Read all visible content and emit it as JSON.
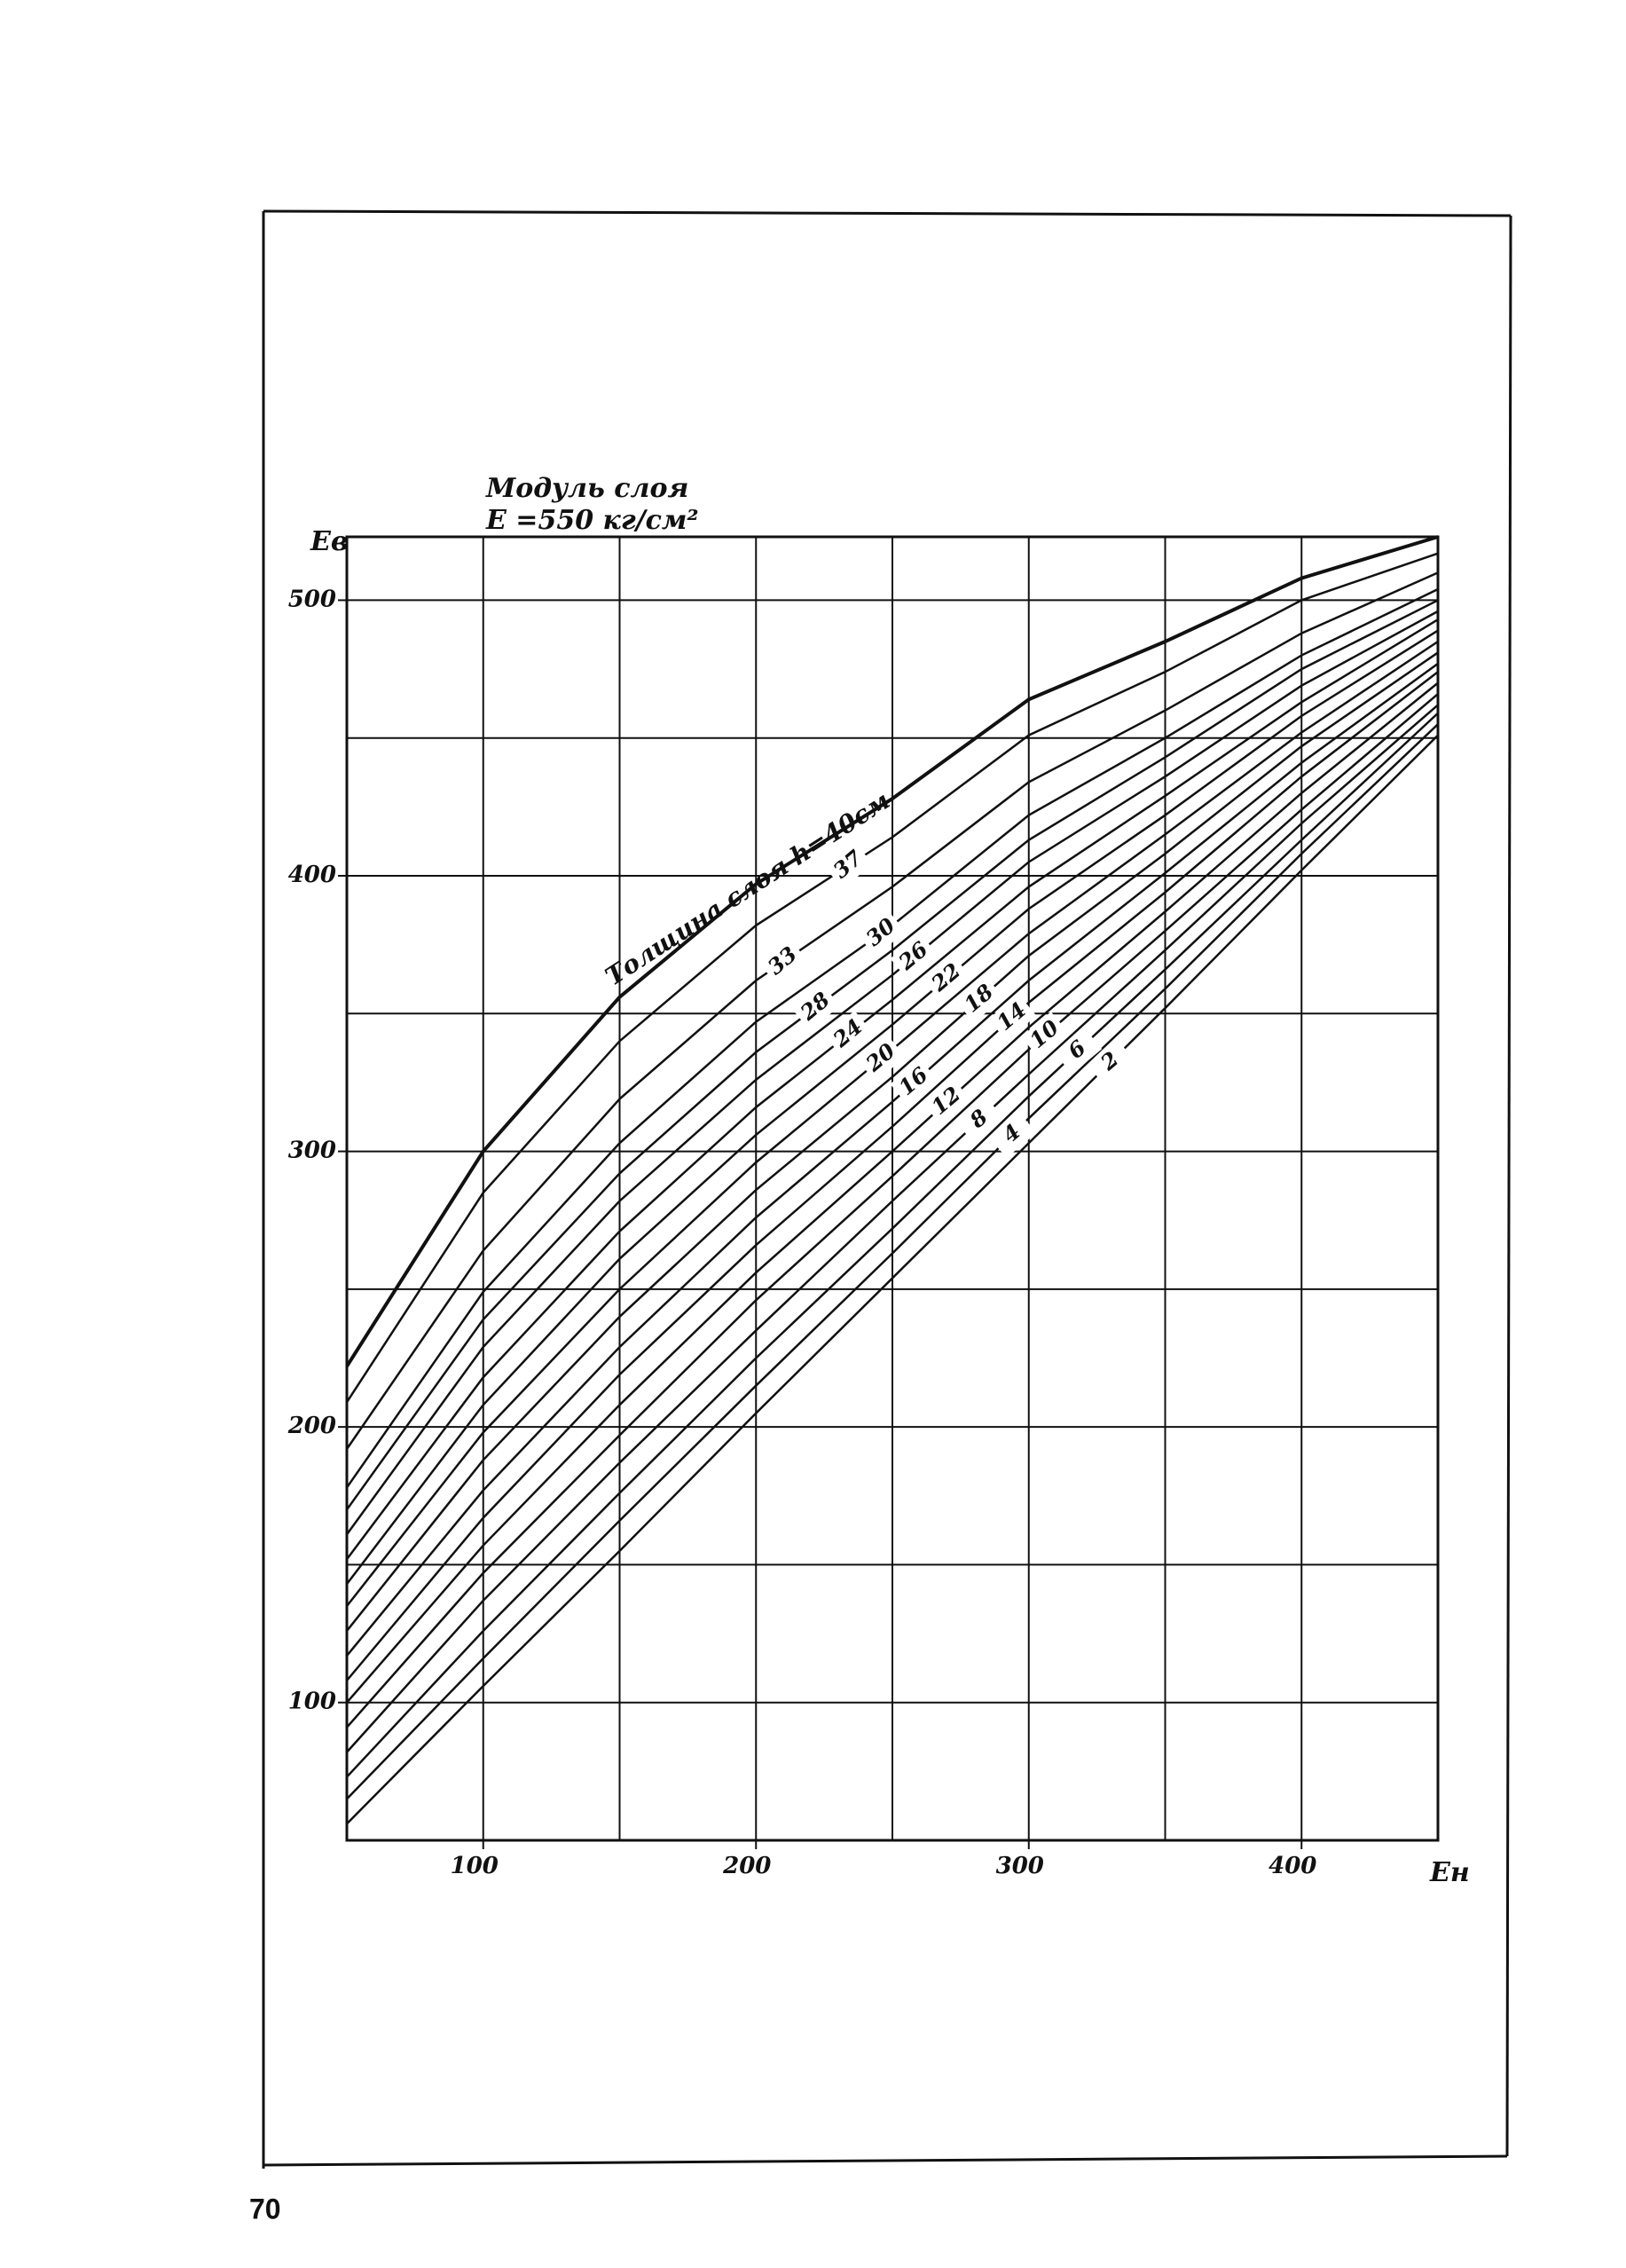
{
  "page_number": "70",
  "chart_data": {
    "type": "line",
    "title": "Модуль слоя",
    "subtitle": "Е =550 кг/см²",
    "y_label": "Eв",
    "x_label": "Eн",
    "xlim": [
      50,
      450
    ],
    "ylim": [
      50,
      523
    ],
    "xticks": [
      100,
      200,
      300,
      400
    ],
    "yticks": [
      100,
      200,
      300,
      400,
      500
    ],
    "xgrid": [
      50,
      100,
      150,
      200,
      250,
      300,
      350,
      400,
      450
    ],
    "ygrid": [
      50,
      100,
      150,
      200,
      250,
      300,
      350,
      400,
      450,
      500
    ],
    "grid": true,
    "x": [
      50,
      100,
      150,
      200,
      250,
      300,
      350,
      400,
      450
    ],
    "series": [
      {
        "name": "2",
        "color": "#111111",
        "values": [
          56,
          106,
          155,
          205,
          254,
          303,
          352,
          402,
          451
        ]
      },
      {
        "name": "4",
        "color": "#111111",
        "values": [
          65,
          116,
          166,
          215,
          263,
          312,
          359,
          408,
          455
        ]
      },
      {
        "name": "6",
        "color": "#111111",
        "values": [
          73,
          126,
          176,
          225,
          272,
          320,
          366,
          413,
          459
        ]
      },
      {
        "name": "8",
        "color": "#111111",
        "values": [
          82,
          137,
          187,
          235,
          282,
          328,
          373,
          419,
          462
        ]
      },
      {
        "name": "10",
        "color": "#111111",
        "values": [
          91,
          147,
          197,
          246,
          291,
          337,
          380,
          424,
          466
        ]
      },
      {
        "name": "12",
        "color": "#111111",
        "values": [
          100,
          157,
          208,
          256,
          300,
          345,
          387,
          430,
          470
        ]
      },
      {
        "name": "14",
        "color": "#111111",
        "values": [
          108,
          167,
          219,
          266,
          309,
          354,
          394,
          436,
          474
        ]
      },
      {
        "name": "16",
        "color": "#111111",
        "values": [
          117,
          177,
          229,
          276,
          318,
          362,
          401,
          441,
          477
        ]
      },
      {
        "name": "18",
        "color": "#111111",
        "values": [
          126,
          188,
          240,
          286,
          327,
          371,
          408,
          447,
          481
        ]
      },
      {
        "name": "20",
        "color": "#111111",
        "values": [
          135,
          198,
          250,
          296,
          337,
          379,
          415,
          452,
          485
        ]
      },
      {
        "name": "22",
        "color": "#111111",
        "values": [
          143,
          208,
          261,
          306,
          346,
          388,
          422,
          458,
          489
        ]
      },
      {
        "name": "24",
        "color": "#111111",
        "values": [
          152,
          218,
          271,
          316,
          355,
          396,
          429,
          463,
          493
        ]
      },
      {
        "name": "26",
        "color": "#111111",
        "values": [
          161,
          229,
          282,
          326,
          364,
          405,
          436,
          469,
          496
        ]
      },
      {
        "name": "28",
        "color": "#111111",
        "values": [
          170,
          239,
          292,
          336,
          373,
          413,
          443,
          475,
          500
        ]
      },
      {
        "name": "30",
        "color": "#111111",
        "values": [
          178,
          249,
          303,
          347,
          382,
          422,
          450,
          480,
          504
        ]
      },
      {
        "name": "33",
        "color": "#111111",
        "values": [
          192,
          264,
          319,
          362,
          396,
          434,
          460,
          488,
          510
        ]
      },
      {
        "name": "37",
        "color": "#111111",
        "values": [
          209,
          285,
          340,
          382,
          414,
          451,
          474,
          500,
          517
        ]
      },
      {
        "name": "Толщина слоя h=40см",
        "color": "#111111",
        "values": [
          222,
          300,
          356,
          397,
          428,
          464,
          485,
          508,
          523
        ]
      }
    ]
  }
}
